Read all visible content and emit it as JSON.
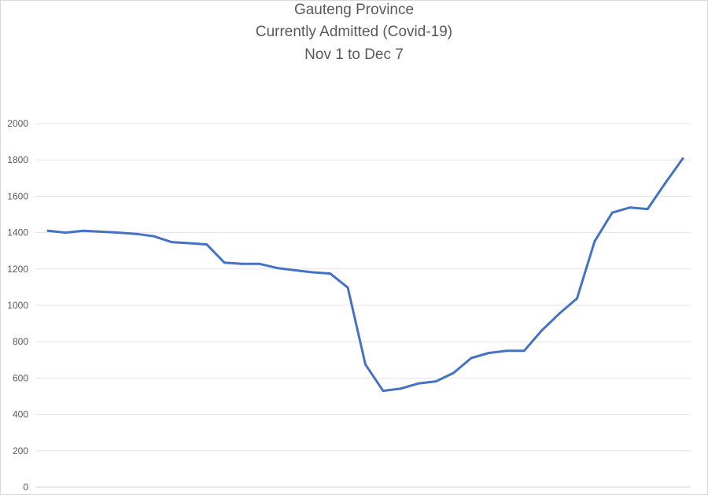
{
  "chart_data": {
    "type": "line",
    "title_lines": [
      "Gauteng Province",
      "Currently Admitted (Covid-19)",
      "Nov 1 to Dec 7"
    ],
    "xlabel": "",
    "ylabel": "",
    "ylim": [
      0,
      2000
    ],
    "yticks": [
      0,
      200,
      400,
      600,
      800,
      1000,
      1200,
      1400,
      1600,
      1800,
      2000
    ],
    "grid": true,
    "legend": "none",
    "series": [
      {
        "color": "#4472C4",
        "values": [
          1410,
          1400,
          1410,
          1405,
          1400,
          1393,
          1380,
          1348,
          1342,
          1335,
          1235,
          1228,
          1228,
          1205,
          1193,
          1182,
          1175,
          1098,
          675,
          530,
          542,
          570,
          582,
          628,
          710,
          738,
          750,
          750,
          862,
          955,
          1038,
          1352,
          1510,
          1538,
          1530,
          1672,
          1808
        ]
      }
    ]
  }
}
